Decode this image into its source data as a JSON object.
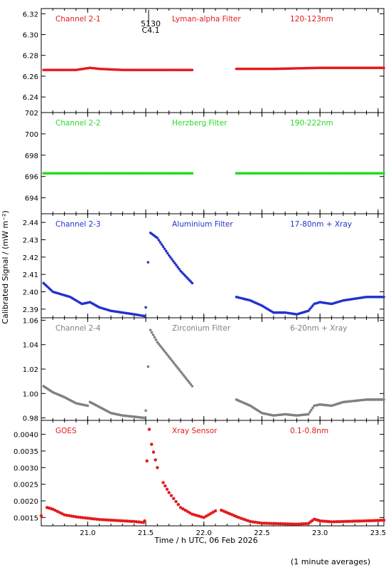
{
  "shared": {
    "x_range": [
      20.6,
      23.55
    ],
    "x_ticks": [
      "21.0",
      "21.5",
      "22.0",
      "22.5",
      "23.0",
      "23.5"
    ],
    "x_tick_values": [
      21.0,
      21.5,
      22.0,
      22.5,
      23.0,
      23.5
    ],
    "xlabel": "Time / h UTC, 06 Feb 2026",
    "ylabel": "Calibrated Signal / (mW m⁻²)",
    "footnote": "(1 minute averages)",
    "event_marker": {
      "x": 21.5,
      "label_top": "5130",
      "label_bottom": "C4.1"
    }
  },
  "chart_data": [
    {
      "type": "scatter",
      "title": "",
      "channel_label": "Channel 2-1",
      "filter_label": "Lyman-alpha Filter",
      "band_label": "120-123nm",
      "color": "#e41a1c",
      "ylim": [
        6.225,
        6.325
      ],
      "y_ticks": [
        "6.24",
        "6.26",
        "6.28",
        "6.30",
        "6.32"
      ],
      "y_tick_values": [
        6.24,
        6.26,
        6.28,
        6.3,
        6.32
      ],
      "series": [
        {
          "name": "",
          "x": [
            20.62,
            20.9,
            21.02,
            21.1,
            21.3,
            21.6,
            21.9,
            22.28,
            22.6,
            23.0,
            23.3,
            23.55
          ],
          "y": [
            6.266,
            6.266,
            6.268,
            6.267,
            6.266,
            6.266,
            6.266,
            6.267,
            6.267,
            6.268,
            6.268,
            6.268
          ]
        }
      ],
      "gaps": [
        [
          21.9,
          22.28
        ]
      ]
    },
    {
      "type": "scatter",
      "title": "",
      "channel_label": "Channel 2-2",
      "filter_label": "Herzberg Filter",
      "band_label": "190-222nm",
      "color": "#22dd22",
      "ylim": [
        692.5,
        702.0
      ],
      "y_ticks": [
        "694",
        "696",
        "698",
        "700",
        "702"
      ],
      "y_tick_values": [
        694,
        696,
        698,
        700,
        702
      ],
      "series": [
        {
          "name": "",
          "x": [
            20.62,
            21.0,
            21.5,
            21.9,
            22.28,
            22.8,
            23.2,
            23.55
          ],
          "y": [
            696.3,
            696.3,
            696.3,
            696.3,
            696.3,
            696.3,
            696.3,
            696.3
          ]
        }
      ],
      "gaps": [
        [
          21.9,
          22.28
        ]
      ]
    },
    {
      "type": "scatter",
      "title": "",
      "channel_label": "Channel 2-3",
      "filter_label": "Aluminium Filter",
      "band_label": "17-80nm + Xray",
      "color": "#2233cc",
      "ylim": [
        2.385,
        2.445
      ],
      "y_ticks": [
        "2.39",
        "2.40",
        "2.41",
        "2.42",
        "2.43",
        "2.44"
      ],
      "y_tick_values": [
        2.39,
        2.4,
        2.41,
        2.42,
        2.43,
        2.44
      ],
      "series": [
        {
          "name": "",
          "x": [
            20.62,
            20.7,
            20.75,
            20.85,
            20.95,
            21.02,
            21.1,
            21.2,
            21.3,
            21.4,
            21.49,
            21.5,
            21.52,
            21.54,
            21.6,
            21.7,
            21.8,
            21.9,
            22.28,
            22.4,
            22.5,
            22.6,
            22.7,
            22.8,
            22.9,
            22.95,
            23.0,
            23.1,
            23.2,
            23.3,
            23.4,
            23.55
          ],
          "y": [
            2.405,
            2.4,
            2.399,
            2.397,
            2.393,
            2.394,
            2.391,
            2.389,
            2.388,
            2.387,
            2.386,
            2.391,
            2.417,
            2.434,
            2.431,
            2.421,
            2.412,
            2.405,
            2.397,
            2.395,
            2.392,
            2.388,
            2.388,
            2.387,
            2.389,
            2.393,
            2.394,
            2.393,
            2.395,
            2.396,
            2.397,
            2.397
          ]
        }
      ],
      "gaps": [
        [
          21.9,
          22.28
        ]
      ]
    },
    {
      "type": "scatter",
      "title": "",
      "channel_label": "Channel 2-4",
      "filter_label": "Zirconium Filter",
      "band_label": "6-20nm + Xray",
      "color": "#808080",
      "ylim": [
        0.978,
        1.062
      ],
      "y_ticks": [
        "0.98",
        "1.00",
        "1.02",
        "1.04",
        "1.06"
      ],
      "y_tick_values": [
        0.98,
        1.0,
        1.02,
        1.04,
        1.06
      ],
      "series": [
        {
          "name": "",
          "x": [
            20.62,
            20.7,
            20.8,
            20.9,
            21.0,
            21.02,
            21.1,
            21.2,
            21.3,
            21.4,
            21.49,
            21.5,
            21.52,
            21.54,
            21.6,
            21.7,
            21.8,
            21.9,
            22.28,
            22.4,
            22.5,
            22.6,
            22.7,
            22.8,
            22.9,
            22.95,
            23.0,
            23.1,
            23.2,
            23.3,
            23.4,
            23.55
          ],
          "y": [
            1.006,
            1.001,
            0.997,
            0.992,
            0.99,
            0.993,
            0.989,
            0.984,
            0.982,
            0.981,
            0.98,
            0.986,
            1.022,
            1.052,
            1.042,
            1.03,
            1.018,
            1.006,
            0.995,
            0.99,
            0.984,
            0.982,
            0.983,
            0.982,
            0.983,
            0.99,
            0.991,
            0.99,
            0.993,
            0.994,
            0.995,
            0.995
          ]
        }
      ],
      "gaps": [
        [
          21.9,
          22.28
        ]
      ]
    },
    {
      "type": "scatter",
      "title": "",
      "channel_label": "GOES",
      "filter_label": "Xray Sensor",
      "band_label": "0.1-0.8nm",
      "color": "#e41a1c",
      "ylim": [
        0.00125,
        0.00442
      ],
      "y_ticks": [
        "0.0015",
        "0.0020",
        "0.0025",
        "0.0030",
        "0.0035",
        "0.0040"
      ],
      "y_tick_values": [
        0.0015,
        0.002,
        0.0025,
        0.003,
        0.0035,
        0.004
      ],
      "series": [
        {
          "name": "",
          "x": [
            20.6,
            20.65,
            20.7,
            20.8,
            20.9,
            21.0,
            21.1,
            21.2,
            21.3,
            21.4,
            21.48,
            21.49,
            21.51,
            21.53,
            21.55,
            21.6,
            21.65,
            21.7,
            21.8,
            21.9,
            22.0,
            22.1,
            22.15,
            22.3,
            22.4,
            22.5,
            22.6,
            22.7,
            22.8,
            22.9,
            22.95,
            23.0,
            23.1,
            23.2,
            23.3,
            23.4,
            23.55
          ],
          "y": [
            0.00155,
            0.0018,
            0.00175,
            0.00158,
            0.00152,
            0.00148,
            0.00144,
            0.00142,
            0.0014,
            0.00138,
            0.00135,
            0.0014,
            0.0032,
            0.00415,
            0.0037,
            0.003,
            0.00255,
            0.00225,
            0.0018,
            0.0016,
            0.0015,
            0.0017,
            0.00172,
            0.0015,
            0.00138,
            0.00133,
            0.00132,
            0.00131,
            0.0013,
            0.00132,
            0.00145,
            0.0014,
            0.00137,
            0.00138,
            0.00139,
            0.0014,
            0.00142
          ]
        }
      ],
      "gaps": []
    }
  ]
}
